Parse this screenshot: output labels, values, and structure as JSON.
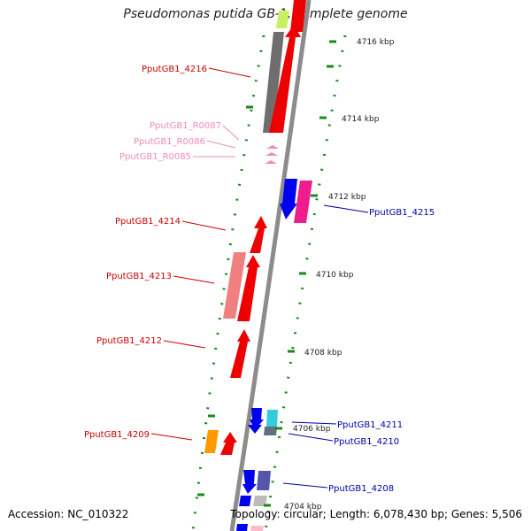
{
  "title": "Pseudomonas putida GB-1, complete genome",
  "accession": "Accession: NC_010322",
  "topology": "Topology: circular; Length: 6,078,430 bp; Genes: 5,506",
  "ticks": [
    "4716 kbp",
    "4714 kbp",
    "4712 kbp",
    "4710 kbp",
    "4708 kbp",
    "4706 kbp",
    "4704 kbp"
  ],
  "genes_left": [
    {
      "label": "PputGB1_4216",
      "color": "#cc0000"
    },
    {
      "label": "PputGB1_R0087",
      "color": "#f08ab8"
    },
    {
      "label": "PputGB1_R0086",
      "color": "#f08ab8"
    },
    {
      "label": "PputGB1_R0085",
      "color": "#f08ab8"
    },
    {
      "label": "PputGB1_4214",
      "color": "#cc0000"
    },
    {
      "label": "PputGB1_4213",
      "color": "#cc0000"
    },
    {
      "label": "PputGB1_4212",
      "color": "#cc0000"
    },
    {
      "label": "PputGB1_4209",
      "color": "#cc0000"
    }
  ],
  "genes_right": [
    {
      "label": "PputGB1_4215",
      "color": "#0000aa"
    },
    {
      "label": "PputGB1_4211",
      "color": "#0000aa"
    },
    {
      "label": "PputGB1_4210",
      "color": "#0000aa"
    },
    {
      "label": "PputGB1_4208",
      "color": "#0000aa"
    }
  ]
}
